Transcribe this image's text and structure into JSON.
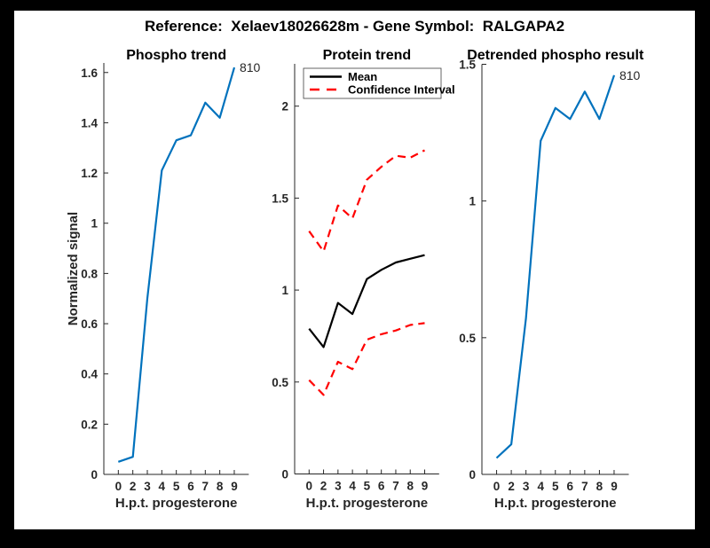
{
  "figure_title": "Reference:  Xelaev18026628m - Gene Symbol:  RALGAPA2",
  "colors": {
    "line_blue": "#0072BD",
    "mean_black": "#000000",
    "ci_red": "#ff0000",
    "axis": "#262626",
    "background": "#ffffff",
    "frame": "#000000"
  },
  "chart_data": [
    {
      "id": "phospho-trend",
      "type": "line",
      "title": "Phospho trend",
      "xlabel": "H.p.t. progesterone",
      "ylabel": "Normalized signal",
      "x_tick_labels": [
        "0",
        "2",
        "3",
        "4",
        "5",
        "6",
        "7",
        "8",
        "9"
      ],
      "yticks": [
        0,
        0.2,
        0.4,
        0.6,
        0.8,
        1,
        1.2,
        1.4,
        1.6
      ],
      "ytick_labels": [
        "0",
        "0.2",
        "0.4",
        "0.6",
        "0.8",
        "1",
        "1.2",
        "1.4",
        "1.6"
      ],
      "ylim": [
        0,
        1.638
      ],
      "grid": false,
      "end_label": "810",
      "series": [
        {
          "name": "Phospho signal",
          "color": "#0072BD",
          "style": "solid",
          "values": [
            0.05,
            0.07,
            0.7,
            1.21,
            1.33,
            1.35,
            1.48,
            1.42,
            1.62
          ]
        }
      ]
    },
    {
      "id": "protein-trend",
      "type": "line",
      "title": "Protein trend",
      "xlabel": "H.p.t. progesterone",
      "ylabel": "",
      "x_tick_labels": [
        "0",
        "2",
        "3",
        "4",
        "5",
        "6",
        "7",
        "8",
        "9"
      ],
      "yticks": [
        0,
        0.5,
        1,
        1.5,
        2
      ],
      "ytick_labels": [
        "0",
        "0.5",
        "1",
        "1.5",
        "2"
      ],
      "ylim": [
        0,
        2.23
      ],
      "grid": false,
      "legend": {
        "position": "top-left",
        "entries": [
          "Mean",
          "Confidence Interval"
        ]
      },
      "series": [
        {
          "name": "Mean",
          "color": "#000000",
          "style": "solid",
          "values": [
            0.79,
            0.69,
            0.93,
            0.87,
            1.06,
            1.11,
            1.15,
            1.17,
            1.19
          ]
        },
        {
          "name": "Confidence Interval upper",
          "color": "#ff0000",
          "style": "dashed",
          "values": [
            1.32,
            1.21,
            1.46,
            1.39,
            1.6,
            1.67,
            1.73,
            1.72,
            1.76
          ]
        },
        {
          "name": "Confidence Interval lower",
          "color": "#ff0000",
          "style": "dashed",
          "values": [
            0.51,
            0.43,
            0.61,
            0.57,
            0.73,
            0.76,
            0.78,
            0.81,
            0.82
          ]
        }
      ]
    },
    {
      "id": "detrended-phospho-result",
      "type": "line",
      "title": "Detrended phospho result",
      "xlabel": "H.p.t. progesterone",
      "ylabel": "",
      "x_tick_labels": [
        "0",
        "2",
        "3",
        "4",
        "5",
        "6",
        "7",
        "8",
        "9"
      ],
      "yticks": [
        0,
        0.5,
        1,
        1.5
      ],
      "ytick_labels": [
        "0",
        "0.5",
        "1",
        "1.5"
      ],
      "ylim": [
        0,
        1.5
      ],
      "grid": false,
      "end_label": "810",
      "series": [
        {
          "name": "Detrended phospho signal",
          "color": "#0072BD",
          "style": "solid",
          "values": [
            0.06,
            0.11,
            0.57,
            1.22,
            1.34,
            1.3,
            1.4,
            1.3,
            1.46
          ]
        }
      ]
    }
  ]
}
